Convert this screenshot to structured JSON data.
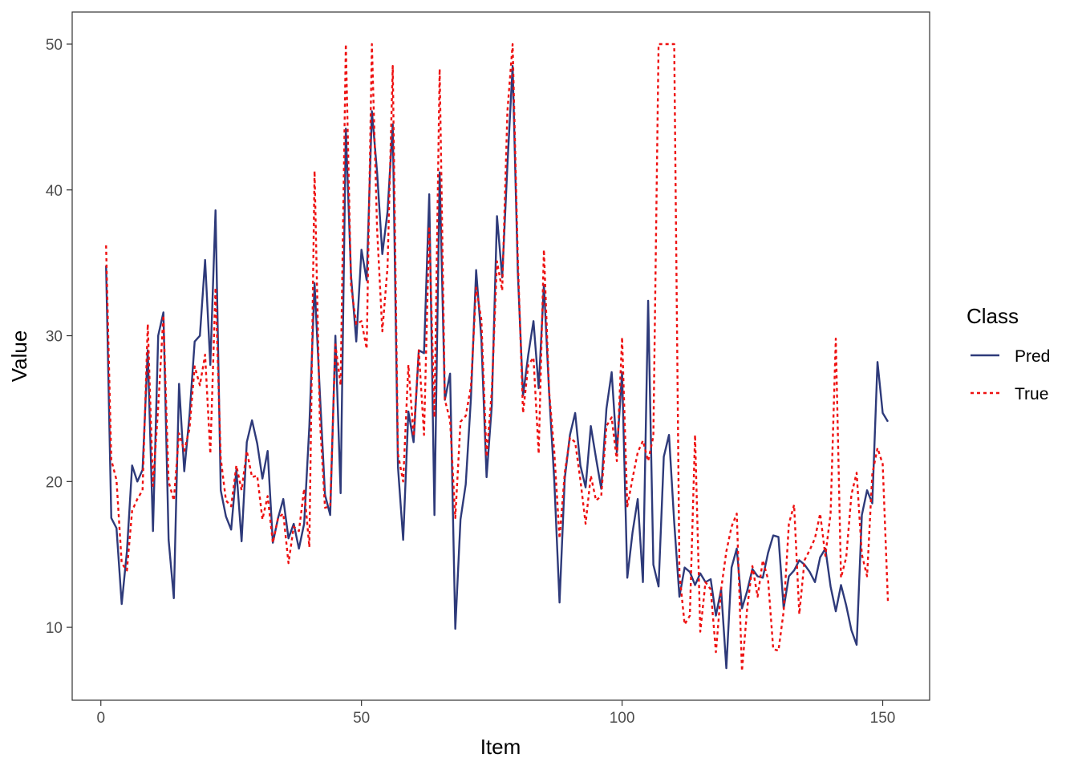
{
  "chart_data": {
    "type": "line",
    "title": "",
    "xlabel": "Item",
    "ylabel": "Value",
    "xlim": [
      -5.5,
      159
    ],
    "ylim": [
      5,
      52.2
    ],
    "x_ticks": [
      0,
      50,
      100,
      150
    ],
    "y_ticks": [
      10,
      20,
      30,
      40,
      50
    ],
    "grid": false,
    "legend": {
      "title": "Class",
      "position": "right"
    },
    "series": [
      {
        "name": "Pred",
        "color": "#2e3a7a",
        "dash": "solid",
        "x_start": 1,
        "values": [
          34.8,
          17.5,
          16.8,
          11.6,
          15.2,
          21.1,
          20,
          20.8,
          29,
          16.6,
          30,
          31.6,
          16,
          12,
          26.7,
          20.7,
          24.5,
          29.6,
          30,
          35.2,
          28,
          38.6,
          19.4,
          17.6,
          16.7,
          20.8,
          15.9,
          22.7,
          24.2,
          22.6,
          20.2,
          22.1,
          15.8,
          17.5,
          18.8,
          16.1,
          17.1,
          15.4,
          17.1,
          23.8,
          33.6,
          26.2,
          19.1,
          17.7,
          30,
          19.2,
          44.2,
          34.1,
          29.6,
          35.9,
          33.8,
          45.4,
          41.2,
          35.6,
          38.5,
          44.5,
          21,
          16,
          24.8,
          22.7,
          29,
          28.8,
          39.7,
          17.7,
          41.2,
          25.6,
          27.4,
          9.9,
          17.4,
          19.8,
          25.7,
          34.5,
          29.8,
          20.3,
          25.2,
          38.2,
          34,
          41.7,
          48.5,
          34.3,
          25.9,
          28.7,
          31,
          26.4,
          33.5,
          26.1,
          20,
          11.7,
          20.2,
          23.2,
          24.7,
          21.1,
          19.6,
          23.8,
          21.6,
          19.5,
          25,
          27.5,
          22,
          27.5,
          13.4,
          16.5,
          18.8,
          13.1,
          32.4,
          14.3,
          12.8,
          21.7,
          23.2,
          17.2,
          12.1,
          14.1,
          13.8,
          12.9,
          13.7,
          13.1,
          13.3,
          10.8,
          12.6,
          7.2,
          14.1,
          15.4,
          11.3,
          12.5,
          14,
          13.5,
          13.4,
          15.1,
          16.3,
          16.2,
          11.3,
          13.5,
          13.9,
          14.6,
          14.3,
          13.8,
          13.1,
          14.8,
          15.4,
          12.8,
          11.1,
          12.9,
          11.5,
          9.8,
          8.8,
          17.7,
          19.4,
          18.5,
          28.2,
          24.7,
          24.1
        ]
      },
      {
        "name": "True",
        "color": "#ee1111",
        "dash": "dotted",
        "x_start": 1,
        "values": [
          36.2,
          21.5,
          20.1,
          14.4,
          13.9,
          18,
          18.8,
          19.4,
          30.8,
          19.7,
          25.1,
          31.4,
          20,
          18.7,
          23.3,
          22.1,
          23.6,
          27.9,
          26.6,
          28.7,
          21.9,
          33.3,
          21.6,
          18.7,
          18.3,
          21.1,
          19.4,
          22.1,
          20.3,
          20.4,
          17.4,
          19,
          15.8,
          17.5,
          17.8,
          14.4,
          16.9,
          16.6,
          19.5,
          15.5,
          41.3,
          24.4,
          18.2,
          18.3,
          29.4,
          26.6,
          50,
          33.4,
          30.8,
          31,
          29.1,
          50,
          37.3,
          30.3,
          34.7,
          48.5,
          21.9,
          20,
          28,
          23.1,
          29,
          23.2,
          37.5,
          24.4,
          48.3,
          25.6,
          24.2,
          17.5,
          24.1,
          24.5,
          26.5,
          33.3,
          31.1,
          21.7,
          26.2,
          35.1,
          33.1,
          45.4,
          50,
          35.2,
          24.7,
          28,
          28.5,
          21.9,
          35.9,
          26.2,
          22,
          16.1,
          20.6,
          23,
          22.7,
          20.1,
          17.1,
          20.4,
          18.7,
          19,
          23.8,
          24.4,
          21.4,
          29.9,
          18.3,
          20.2,
          22,
          22.8,
          21.4,
          23.1,
          50,
          50,
          50,
          50,
          13.7,
          10.2,
          10.8,
          23.2,
          9.7,
          13.1,
          12.6,
          8.3,
          12.6,
          15.2,
          16.9,
          17.8,
          7,
          11.3,
          14.2,
          12.1,
          14.6,
          13.3,
          8.5,
          8.4,
          11.1,
          17.1,
          18.4,
          10.9,
          14.6,
          15.3,
          16.1,
          17.8,
          14.9,
          17.8,
          29.8,
          13.4,
          14.8,
          19.1,
          20.6,
          15,
          13.5,
          20.5,
          22.3,
          21.2,
          11.8
        ]
      }
    ]
  }
}
